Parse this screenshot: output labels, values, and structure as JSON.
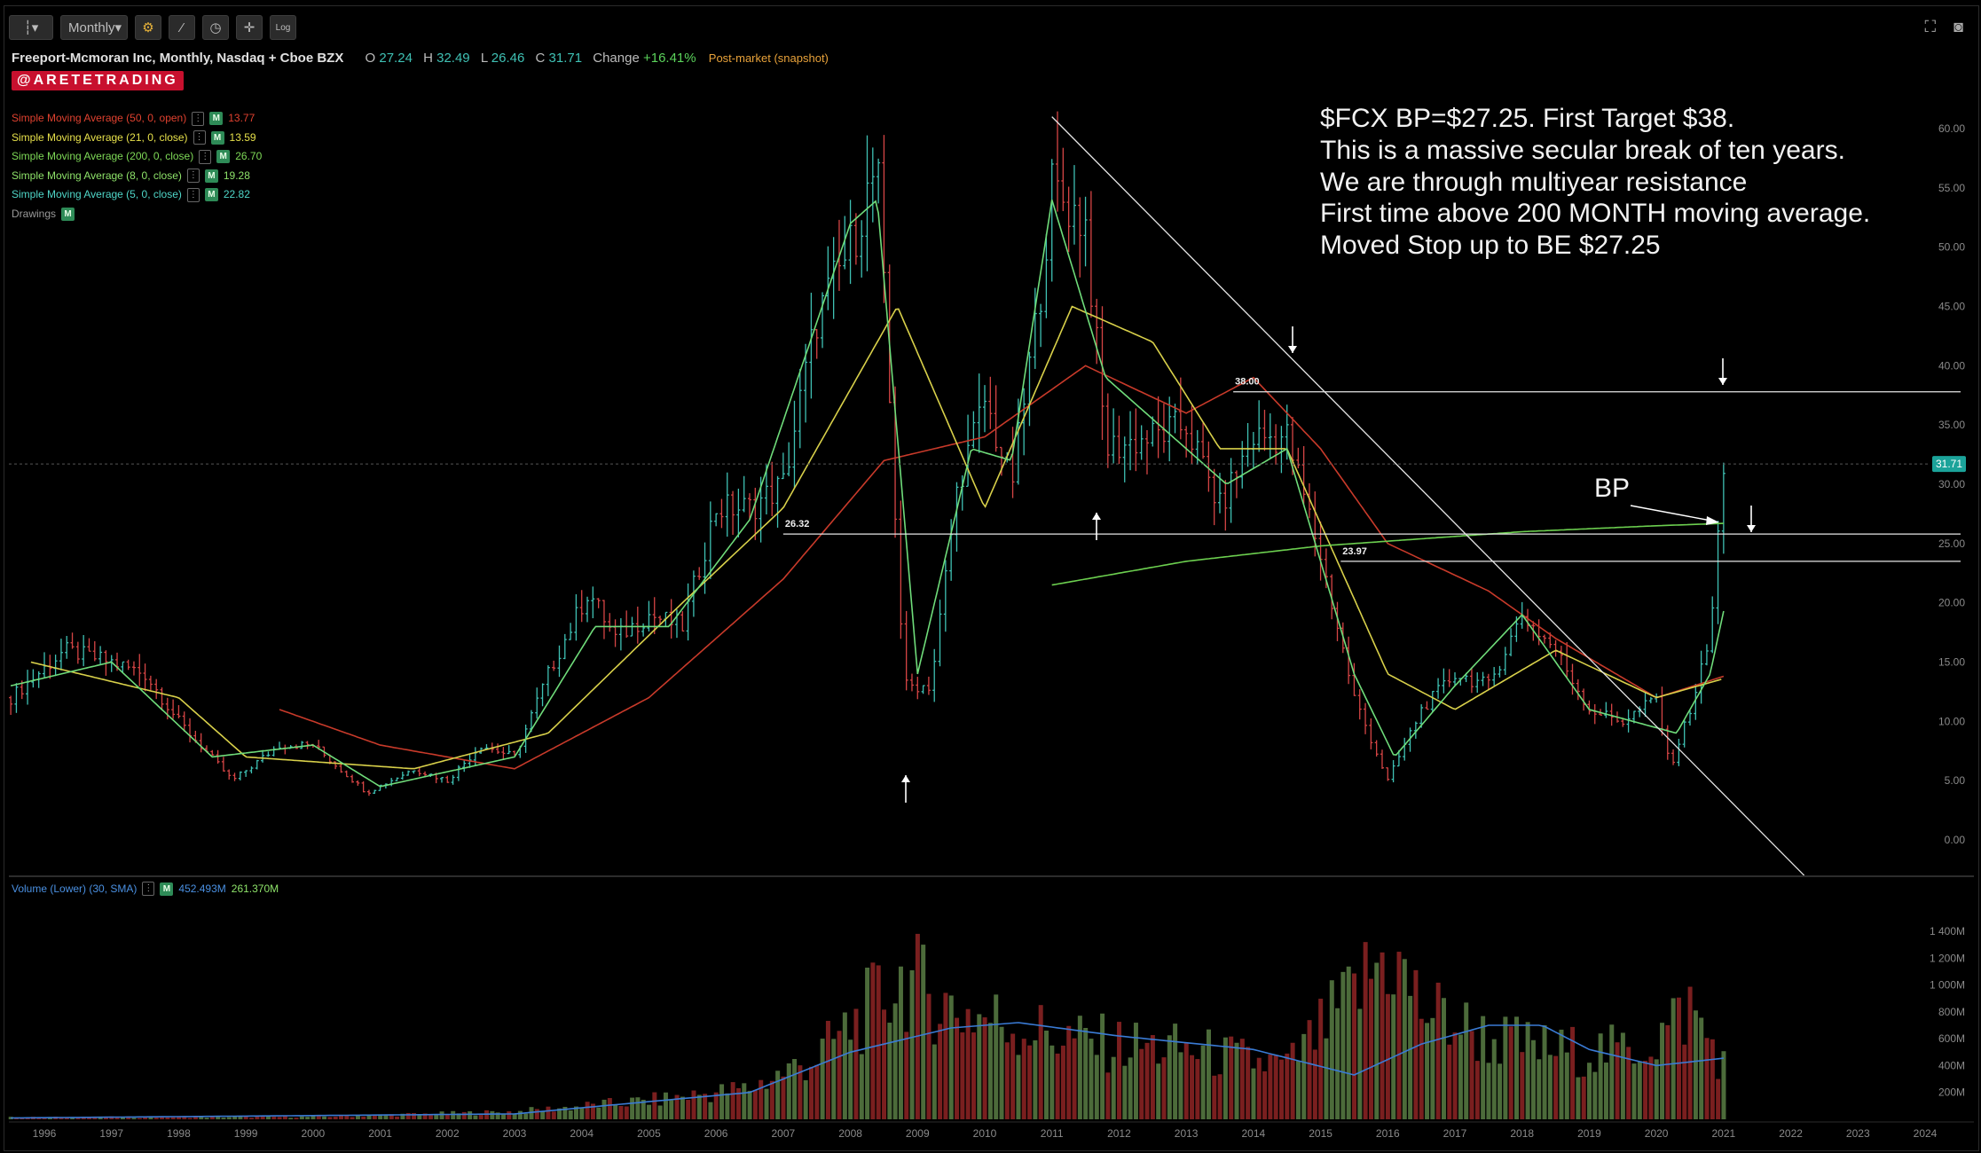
{
  "toolbar": {
    "bar_style_icon": "bar-chart-icon",
    "timeframe_label": "Monthly",
    "log_label": "Log"
  },
  "header": {
    "symbol_title": "Freeport-Mcmoran Inc, Monthly, Nasdaq + Cboe BZX",
    "open_label": "O",
    "open": "27.24",
    "high_label": "H",
    "high": "32.49",
    "low_label": "L",
    "low": "26.46",
    "close_label": "C",
    "close": "31.71",
    "change_label": "Change",
    "change": "+16.41%",
    "postmarket": "Post-market (snapshot)"
  },
  "brand": "@ARETETRADING",
  "studies": [
    {
      "label": "Simple Moving Average (50, 0, open)",
      "value": "13.77",
      "color": "#e0412f"
    },
    {
      "label": "Simple Moving Average (21, 0, close)",
      "value": "13.59",
      "color": "#e6e04a"
    },
    {
      "label": "Simple Moving Average (200, 0, close)",
      "value": "26.70",
      "color": "#7ed957"
    },
    {
      "label": "Simple Moving Average (8, 0, close)",
      "value": "19.28",
      "color": "#8ee36a"
    },
    {
      "label": "Simple Moving Average (5, 0, close)",
      "value": "22.82",
      "color": "#4fd6c8"
    }
  ],
  "drawings_label": "Drawings",
  "badge_m": "M",
  "annotation": [
    "$FCX BP=$27.25. First Target $38.",
    "This is a massive secular break of ten years.",
    "We are through multiyear resistance",
    "First time above 200 MONTH moving average.",
    "Moved Stop up to BE $27.25"
  ],
  "bp_label": "BP",
  "volume_study": {
    "label": "Volume (Lower) (30, SMA)",
    "value1": "452.493M",
    "value2": "261.370M"
  },
  "chart_data": {
    "type": "candlestick",
    "price_axis": {
      "min": 0,
      "max": 60,
      "ticks": [
        "0.00",
        "5.00",
        "10.00",
        "15.00",
        "20.00",
        "25.00",
        "30.00",
        "35.00",
        "40.00",
        "45.00",
        "50.00",
        "55.00",
        "60.00"
      ]
    },
    "volume_axis": {
      "ticks": [
        "200M",
        "400M",
        "600M",
        "800M",
        "1 000M",
        "1 200M",
        "1 400M"
      ]
    },
    "x_axis": {
      "ticks": [
        "1996",
        "1997",
        "1998",
        "1999",
        "2000",
        "2001",
        "2002",
        "2003",
        "2004",
        "2005",
        "2006",
        "2007",
        "2008",
        "2009",
        "2010",
        "2011",
        "2012",
        "2013",
        "2014",
        "2015",
        "2016",
        "2017",
        "2018",
        "2019",
        "2020",
        "2021",
        "2022",
        "2023",
        "2024"
      ]
    },
    "last_price": "31.71",
    "levels": [
      {
        "label": "38.00",
        "value": 37.8
      },
      {
        "label": "26.32",
        "value": 25.8
      },
      {
        "label": "23.97",
        "value": 23.5
      }
    ],
    "price_path": [
      {
        "t": 1995.5,
        "p": 12
      },
      {
        "t": 1996.3,
        "p": 16
      },
      {
        "t": 1997.0,
        "p": 15
      },
      {
        "t": 1997.5,
        "p": 14
      },
      {
        "t": 1998.0,
        "p": 10
      },
      {
        "t": 1998.8,
        "p": 5
      },
      {
        "t": 1999.5,
        "p": 8
      },
      {
        "t": 2000.0,
        "p": 8
      },
      {
        "t": 2000.8,
        "p": 4
      },
      {
        "t": 2001.5,
        "p": 6
      },
      {
        "t": 2002.0,
        "p": 5
      },
      {
        "t": 2002.5,
        "p": 8
      },
      {
        "t": 2003.0,
        "p": 7
      },
      {
        "t": 2003.5,
        "p": 14
      },
      {
        "t": 2004.1,
        "p": 21
      },
      {
        "t": 2004.5,
        "p": 17
      },
      {
        "t": 2005.0,
        "p": 19
      },
      {
        "t": 2005.5,
        "p": 18
      },
      {
        "t": 2006.0,
        "p": 28
      },
      {
        "t": 2006.5,
        "p": 28
      },
      {
        "t": 2007.0,
        "p": 30
      },
      {
        "t": 2007.5,
        "p": 44
      },
      {
        "t": 2008.0,
        "p": 50
      },
      {
        "t": 2008.4,
        "p": 57
      },
      {
        "t": 2008.8,
        "p": 13
      },
      {
        "t": 2009.2,
        "p": 13
      },
      {
        "t": 2009.6,
        "p": 30
      },
      {
        "t": 2010.0,
        "p": 37
      },
      {
        "t": 2010.4,
        "p": 30
      },
      {
        "t": 2010.8,
        "p": 45
      },
      {
        "t": 2011.0,
        "p": 55
      },
      {
        "t": 2011.5,
        "p": 52
      },
      {
        "t": 2011.8,
        "p": 33
      },
      {
        "t": 2012.5,
        "p": 34
      },
      {
        "t": 2013.0,
        "p": 35
      },
      {
        "t": 2013.5,
        "p": 28
      },
      {
        "t": 2014.0,
        "p": 34
      },
      {
        "t": 2014.5,
        "p": 34
      },
      {
        "t": 2015.0,
        "p": 24
      },
      {
        "t": 2015.5,
        "p": 12
      },
      {
        "t": 2016.0,
        "p": 5
      },
      {
        "t": 2016.5,
        "p": 11
      },
      {
        "t": 2017.0,
        "p": 14
      },
      {
        "t": 2017.5,
        "p": 13
      },
      {
        "t": 2018.0,
        "p": 19
      },
      {
        "t": 2018.5,
        "p": 16
      },
      {
        "t": 2019.0,
        "p": 11
      },
      {
        "t": 2019.5,
        "p": 10
      },
      {
        "t": 2020.0,
        "p": 12
      },
      {
        "t": 2020.2,
        "p": 6
      },
      {
        "t": 2020.5,
        "p": 11
      },
      {
        "t": 2020.8,
        "p": 17
      },
      {
        "t": 2021.0,
        "p": 31.7
      }
    ],
    "volume_path": [
      {
        "t": 1995.5,
        "v": 15
      },
      {
        "t": 2000.0,
        "v": 20
      },
      {
        "t": 2003.0,
        "v": 60
      },
      {
        "t": 2005.0,
        "v": 150
      },
      {
        "t": 2006.5,
        "v": 250
      },
      {
        "t": 2007.5,
        "v": 500
      },
      {
        "t": 2008.8,
        "v": 1150
      },
      {
        "t": 2009.5,
        "v": 900
      },
      {
        "t": 2010.5,
        "v": 750
      },
      {
        "t": 2011.5,
        "v": 620
      },
      {
        "t": 2013.0,
        "v": 560
      },
      {
        "t": 2014.5,
        "v": 420
      },
      {
        "t": 2015.5,
        "v": 1000
      },
      {
        "t": 2016.0,
        "v": 1350
      },
      {
        "t": 2016.5,
        "v": 900
      },
      {
        "t": 2017.5,
        "v": 650
      },
      {
        "t": 2018.5,
        "v": 550
      },
      {
        "t": 2019.5,
        "v": 550
      },
      {
        "t": 2020.0,
        "v": 650
      },
      {
        "t": 2020.5,
        "v": 900
      },
      {
        "t": 2021.0,
        "v": 450
      }
    ],
    "vol_sma_path": [
      {
        "t": 1995.5,
        "v": 10
      },
      {
        "t": 2003.0,
        "v": 40
      },
      {
        "t": 2006.5,
        "v": 200
      },
      {
        "t": 2008.0,
        "v": 500
      },
      {
        "t": 2009.5,
        "v": 680
      },
      {
        "t": 2010.5,
        "v": 720
      },
      {
        "t": 2012.0,
        "v": 620
      },
      {
        "t": 2014.0,
        "v": 520
      },
      {
        "t": 2015.5,
        "v": 330
      },
      {
        "t": 2016.5,
        "v": 560
      },
      {
        "t": 2017.5,
        "v": 700
      },
      {
        "t": 2018.3,
        "v": 700
      },
      {
        "t": 2019.0,
        "v": 520
      },
      {
        "t": 2020.0,
        "v": 400
      },
      {
        "t": 2021.0,
        "v": 455
      }
    ],
    "sma_paths": {
      "sma50": [
        {
          "t": 1999.5,
          "p": 11
        },
        {
          "t": 2001.0,
          "p": 8
        },
        {
          "t": 2003.0,
          "p": 6
        },
        {
          "t": 2005.0,
          "p": 12
        },
        {
          "t": 2007.0,
          "p": 22
        },
        {
          "t": 2008.5,
          "p": 32
        },
        {
          "t": 2010.0,
          "p": 34
        },
        {
          "t": 2011.5,
          "p": 40
        },
        {
          "t": 2013.0,
          "p": 36
        },
        {
          "t": 2014.0,
          "p": 39
        },
        {
          "t": 2015.0,
          "p": 33
        },
        {
          "t": 2016.0,
          "p": 25
        },
        {
          "t": 2017.5,
          "p": 21
        },
        {
          "t": 2018.5,
          "p": 17
        },
        {
          "t": 2020.0,
          "p": 12
        },
        {
          "t": 2021.0,
          "p": 13.8
        }
      ],
      "sma21": [
        {
          "t": 1995.8,
          "p": 15
        },
        {
          "t": 1998.0,
          "p": 12
        },
        {
          "t": 1999.0,
          "p": 7
        },
        {
          "t": 2001.5,
          "p": 6
        },
        {
          "t": 2003.5,
          "p": 9
        },
        {
          "t": 2005.5,
          "p": 20
        },
        {
          "t": 2007.0,
          "p": 28
        },
        {
          "t": 2008.7,
          "p": 45
        },
        {
          "t": 2010.0,
          "p": 28
        },
        {
          "t": 2011.3,
          "p": 45
        },
        {
          "t": 2012.5,
          "p": 42
        },
        {
          "t": 2013.5,
          "p": 33
        },
        {
          "t": 2014.5,
          "p": 33
        },
        {
          "t": 2016.0,
          "p": 14
        },
        {
          "t": 2017.0,
          "p": 11
        },
        {
          "t": 2018.5,
          "p": 16
        },
        {
          "t": 2020.0,
          "p": 12
        },
        {
          "t": 2021.0,
          "p": 13.6
        }
      ],
      "sma200": [
        {
          "t": 2011.0,
          "p": 21.5
        },
        {
          "t": 2013.0,
          "p": 23.5
        },
        {
          "t": 2015.0,
          "p": 24.8
        },
        {
          "t": 2018.0,
          "p": 26.0
        },
        {
          "t": 2020.0,
          "p": 26.5
        },
        {
          "t": 2021.0,
          "p": 26.7
        }
      ],
      "sma8": [
        {
          "t": 1995.5,
          "p": 13
        },
        {
          "t": 1997.0,
          "p": 15
        },
        {
          "t": 1998.5,
          "p": 7
        },
        {
          "t": 2000.0,
          "p": 8
        },
        {
          "t": 2001.0,
          "p": 4.5
        },
        {
          "t": 2003.0,
          "p": 7
        },
        {
          "t": 2004.2,
          "p": 18
        },
        {
          "t": 2005.3,
          "p": 18
        },
        {
          "t": 2006.5,
          "p": 27
        },
        {
          "t": 2008.0,
          "p": 52
        },
        {
          "t": 2008.4,
          "p": 54
        },
        {
          "t": 2009.0,
          "p": 14
        },
        {
          "t": 2009.8,
          "p": 33
        },
        {
          "t": 2010.4,
          "p": 32
        },
        {
          "t": 2011.0,
          "p": 54
        },
        {
          "t": 2011.8,
          "p": 39
        },
        {
          "t": 2013.0,
          "p": 33
        },
        {
          "t": 2013.6,
          "p": 30
        },
        {
          "t": 2014.5,
          "p": 33
        },
        {
          "t": 2015.5,
          "p": 14
        },
        {
          "t": 2016.1,
          "p": 7
        },
        {
          "t": 2017.0,
          "p": 13
        },
        {
          "t": 2018.0,
          "p": 19
        },
        {
          "t": 2019.0,
          "p": 11
        },
        {
          "t": 2020.3,
          "p": 9
        },
        {
          "t": 2020.8,
          "p": 14
        },
        {
          "t": 2021.0,
          "p": 19.3
        }
      ]
    }
  }
}
